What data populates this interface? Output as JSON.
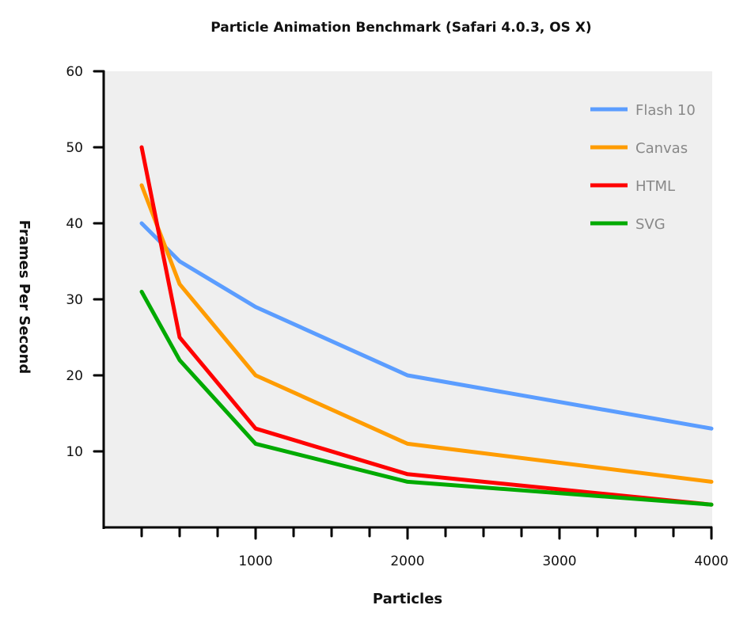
{
  "chart_data": {
    "type": "line",
    "title": "Particle Animation Benchmark (Safari 4.0.3, OS X)",
    "xlabel": "Particles",
    "ylabel": "Frames Per Second",
    "x": [
      250,
      500,
      1000,
      2000,
      4000
    ],
    "xlim": [
      0,
      4000
    ],
    "ylim": [
      0,
      60
    ],
    "xticks": [
      250,
      500,
      750,
      1000,
      1250,
      1500,
      1750,
      2000,
      2250,
      2500,
      2750,
      3000,
      3250,
      3500,
      3750,
      4000
    ],
    "xtick_labels": [
      {
        "value": 1000,
        "label": "1000"
      },
      {
        "value": 2000,
        "label": "2000"
      },
      {
        "value": 3000,
        "label": "3000"
      },
      {
        "value": 4000,
        "label": "4000"
      }
    ],
    "yticks": [
      {
        "value": 10,
        "label": "10"
      },
      {
        "value": 20,
        "label": "20"
      },
      {
        "value": 30,
        "label": "30"
      },
      {
        "value": 40,
        "label": "40"
      },
      {
        "value": 50,
        "label": "50"
      },
      {
        "value": 60,
        "label": "60"
      }
    ],
    "grid": false,
    "legend_position": "top-right",
    "series": [
      {
        "name": "Flash 10",
        "color": "#5b9dff",
        "values": [
          40,
          35,
          29,
          20,
          13
        ]
      },
      {
        "name": "Canvas",
        "color": "#ff9c00",
        "values": [
          45,
          32,
          20,
          11,
          6
        ]
      },
      {
        "name": "HTML",
        "color": "#ff0000",
        "values": [
          50,
          25,
          13,
          7,
          3
        ]
      },
      {
        "name": "SVG",
        "color": "#00aa00",
        "values": [
          31,
          22,
          11,
          6,
          3
        ]
      }
    ],
    "plot_background": "#efefef"
  }
}
